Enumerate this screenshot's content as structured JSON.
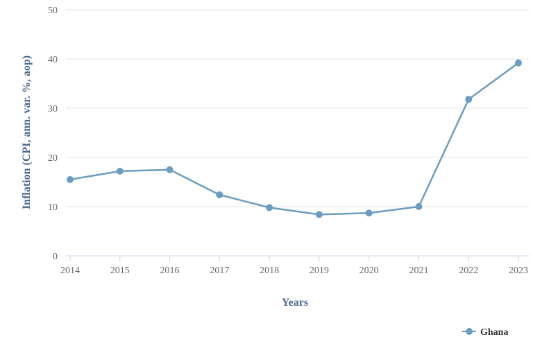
{
  "chart_data": {
    "type": "line",
    "title": "",
    "xlabel": "Years",
    "ylabel": "Inflation (CPI, ann. var. %, aop)",
    "categories": [
      "2014",
      "2015",
      "2016",
      "2017",
      "2018",
      "2019",
      "2020",
      "2021",
      "2022",
      "2023"
    ],
    "ylim": [
      0,
      50
    ],
    "yticks": [
      "0",
      "10",
      "20",
      "30",
      "40",
      "50"
    ],
    "grid": true,
    "legend_position": "bottom-right",
    "series": [
      {
        "name": "Ghana",
        "color": "#6b9dc0",
        "values": [
          15.5,
          17.2,
          17.5,
          12.4,
          9.8,
          8.4,
          8.7,
          10.0,
          31.8,
          39.2
        ]
      }
    ]
  }
}
